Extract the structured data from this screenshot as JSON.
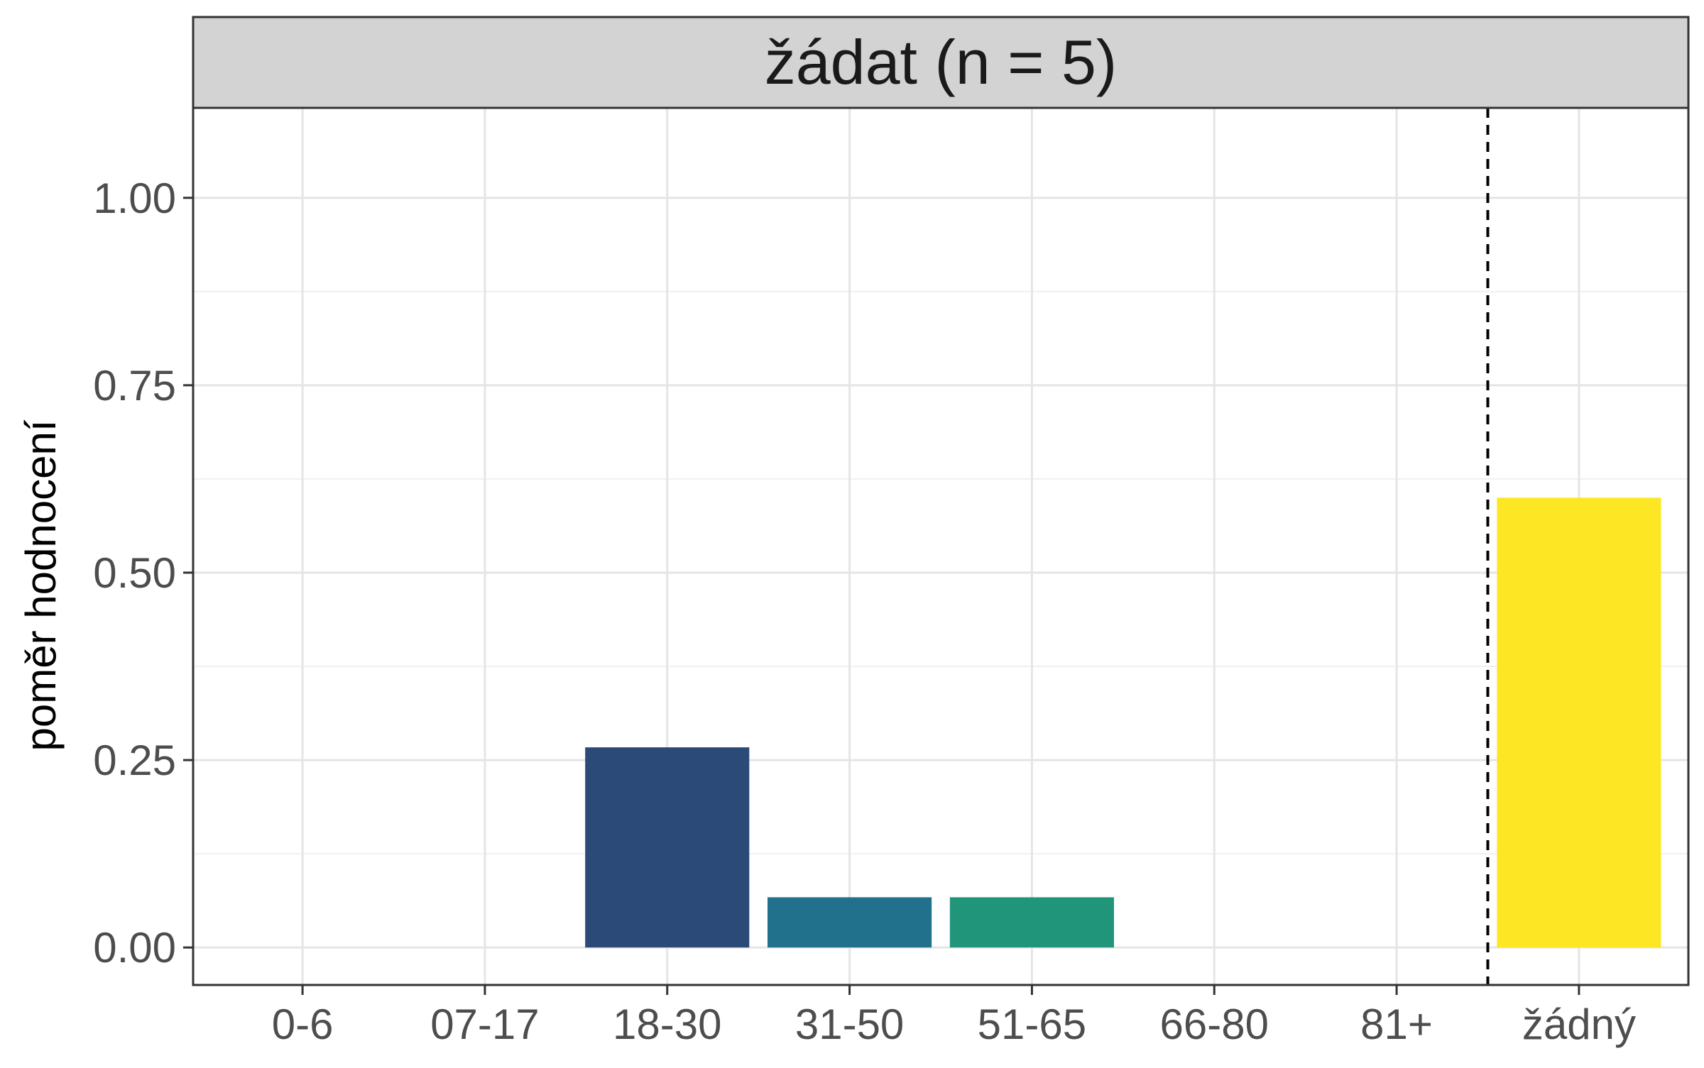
{
  "chart_data": {
    "type": "bar",
    "facet_title": "žádat (n = 5)",
    "xlabel": "",
    "ylabel": "poměr hodnocení",
    "categories": [
      "0-6",
      "07-17",
      "18-30",
      "31-50",
      "51-65",
      "66-80",
      "81+",
      "žádný"
    ],
    "values": [
      0,
      0,
      0.267,
      0.067,
      0.067,
      0,
      0,
      0.6
    ],
    "bar_colors": [
      "#440154",
      "#46327E",
      "#2C4A78",
      "#21718C",
      "#21957A",
      "#5DC863",
      "#AADC32",
      "#FDE725"
    ],
    "ylim": [
      -0.05,
      1.12
    ],
    "yticks": [
      0,
      0.25,
      0.5,
      0.75,
      1
    ],
    "ytick_labels": [
      "0.00",
      "0.25",
      "0.50",
      "0.75",
      "1.00"
    ],
    "reference_line": {
      "style": "dashed",
      "between": [
        "81+",
        "žádný"
      ],
      "color": "#000000"
    },
    "grid": true,
    "legend": "none",
    "colors": {
      "strip_background": "#D3D3D3",
      "panel_border": "#333333",
      "grid_major": "#E5E5E5",
      "grid_minor": "#F0F0F0"
    }
  }
}
